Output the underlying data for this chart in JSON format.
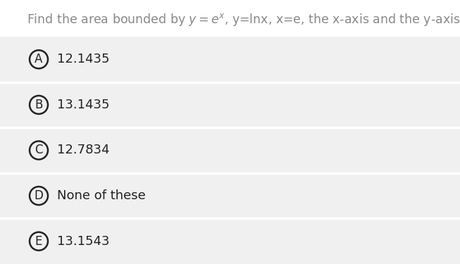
{
  "title_parts": [
    {
      "text": "Find the area bounded by ",
      "style": "normal"
    },
    {
      "text": "y",
      "style": "italic"
    },
    {
      "text": "=",
      "style": "normal"
    },
    {
      "text": "e",
      "style": "italic"
    },
    {
      "text": "x",
      "style": "superscript"
    },
    {
      "text": ", y=lnx, x=e, the x-axis and the y-axis.",
      "style": "normal"
    }
  ],
  "title_color": "#888888",
  "title_fontsize": 12.5,
  "options": [
    {
      "label": "A",
      "text": "12.1435"
    },
    {
      "label": "B",
      "text": "13.1435"
    },
    {
      "label": "C",
      "text": "12.7834"
    },
    {
      "label": "D",
      "text": "None of these"
    },
    {
      "label": "E",
      "text": "13.1543"
    }
  ],
  "bg_color": "#ffffff",
  "option_bg_color": "#f0f0f0",
  "option_divider_color": "#d8d8d8",
  "circle_edge_color": "#222222",
  "text_color": "#222222",
  "option_fontsize": 13,
  "label_fontsize": 12,
  "fig_width": 6.53,
  "fig_height": 3.75,
  "dpi": 100
}
